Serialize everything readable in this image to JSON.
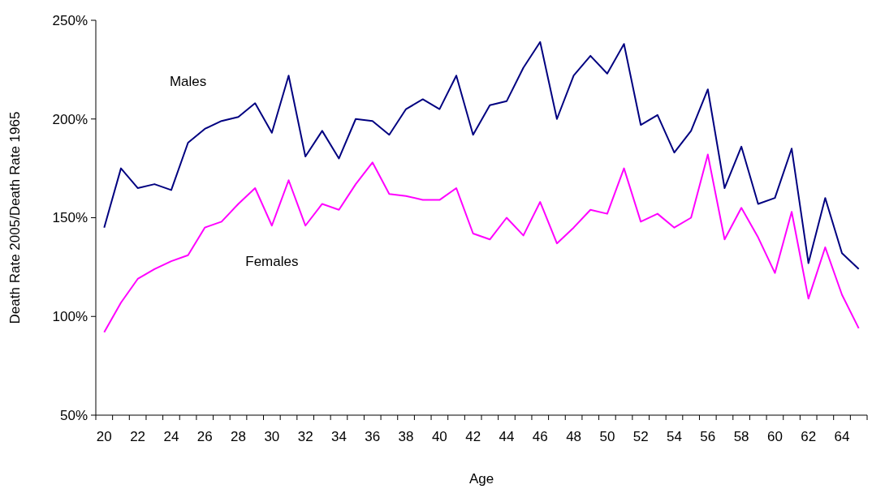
{
  "chart_data": {
    "type": "line",
    "xlabel": "Age",
    "ylabel": "Death Rate 2005/Death Rate 1965",
    "categories": [
      "20",
      null,
      "22",
      null,
      "24",
      null,
      "26",
      null,
      "28",
      null,
      "30",
      null,
      "32",
      null,
      "34",
      null,
      "36",
      null,
      "38",
      null,
      "40",
      null,
      "42",
      null,
      "44",
      null,
      "46",
      null,
      "48",
      null,
      "50",
      null,
      "52",
      null,
      "54",
      null,
      "56",
      null,
      "58",
      null,
      "60",
      null,
      "62",
      null,
      "64",
      null
    ],
    "series": [
      {
        "name": "Males",
        "color": "#000080",
        "values": [
          145,
          175,
          165,
          167,
          164,
          188,
          195,
          199,
          201,
          208,
          193,
          222,
          181,
          194,
          180,
          200,
          199,
          192,
          205,
          210,
          205,
          222,
          192,
          207,
          209,
          226,
          239,
          200,
          222,
          232,
          223,
          238,
          197,
          202,
          183,
          194,
          215,
          165,
          186,
          157,
          160,
          185,
          127,
          160,
          132,
          124
        ]
      },
      {
        "name": "Females",
        "color": "#ff00ff",
        "values": [
          92,
          107,
          119,
          124,
          128,
          131,
          145,
          148,
          157,
          165,
          146,
          169,
          146,
          157,
          154,
          167,
          178,
          162,
          161,
          159,
          159,
          165,
          142,
          139,
          150,
          141,
          158,
          137,
          145,
          154,
          152,
          175,
          148,
          152,
          145,
          150,
          182,
          139,
          155,
          140,
          122,
          153,
          109,
          135,
          111,
          94
        ]
      }
    ],
    "ylim": [
      50,
      250
    ],
    "yticks": [
      {
        "value": 50,
        "label": "50%"
      },
      {
        "value": 100,
        "label": "100%"
      },
      {
        "value": 150,
        "label": "150%"
      },
      {
        "value": 200,
        "label": "200%"
      },
      {
        "value": 250,
        "label": "250%"
      }
    ],
    "grid": false,
    "legend": false,
    "marker": "none",
    "line_style": "solid"
  }
}
